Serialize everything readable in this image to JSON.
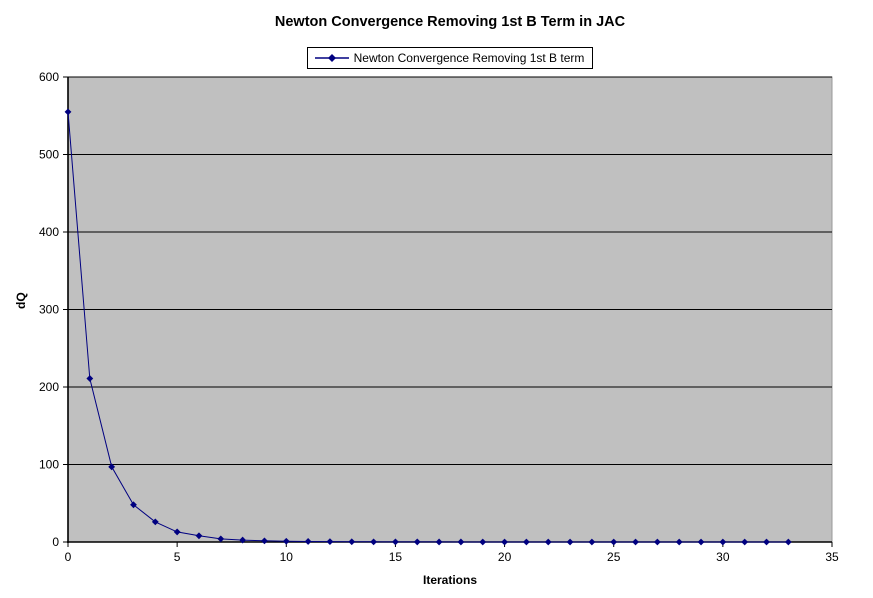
{
  "chart": {
    "title": "Newton Convergence Removing 1st B Term in JAC",
    "legend_label": "Newton Convergence Removing 1st B term",
    "xlabel": "Iterations",
    "ylabel": "dQ"
  },
  "colors": {
    "series": "#000080",
    "plot_background": "#c0c0c0",
    "gridline": "#000000",
    "axis": "#000000",
    "plot_border": "#999999"
  },
  "chart_data": {
    "type": "line",
    "title": "Newton Convergence Removing 1st B Term in JAC",
    "xlabel": "Iterations",
    "ylabel": "dQ",
    "legend_entries": [
      "Newton Convergence Removing 1st B term"
    ],
    "legend_position": "top-center",
    "grid": "horizontal",
    "plot_bg": "#c0c0c0",
    "xlim": [
      0,
      35
    ],
    "ylim": [
      0,
      600
    ],
    "xticks": [
      0,
      5,
      10,
      15,
      20,
      25,
      30,
      35
    ],
    "yticks": [
      0,
      100,
      200,
      300,
      400,
      500,
      600
    ],
    "series": [
      {
        "name": "Newton Convergence Removing 1st B term",
        "color": "#000080",
        "marker": "diamond",
        "x": [
          0,
          1,
          2,
          3,
          4,
          5,
          6,
          7,
          8,
          9,
          10,
          11,
          12,
          13,
          14,
          15,
          16,
          17,
          18,
          19,
          20,
          21,
          22,
          23,
          24,
          25,
          26,
          27,
          28,
          29,
          30,
          31,
          32,
          33
        ],
        "y": [
          555,
          211,
          97,
          48,
          26,
          13,
          8,
          4,
          2.5,
          1.5,
          1,
          0.7,
          0.5,
          0.3,
          0.2,
          0.15,
          0.1,
          0.07,
          0.05,
          0.03,
          0.02,
          0.015,
          0.01,
          0.007,
          0.005,
          0.003,
          0.002,
          0.0015,
          0.001,
          0.0007,
          0.0005,
          0.0003,
          0.0002,
          0.0001
        ]
      }
    ]
  },
  "layout_note": ""
}
